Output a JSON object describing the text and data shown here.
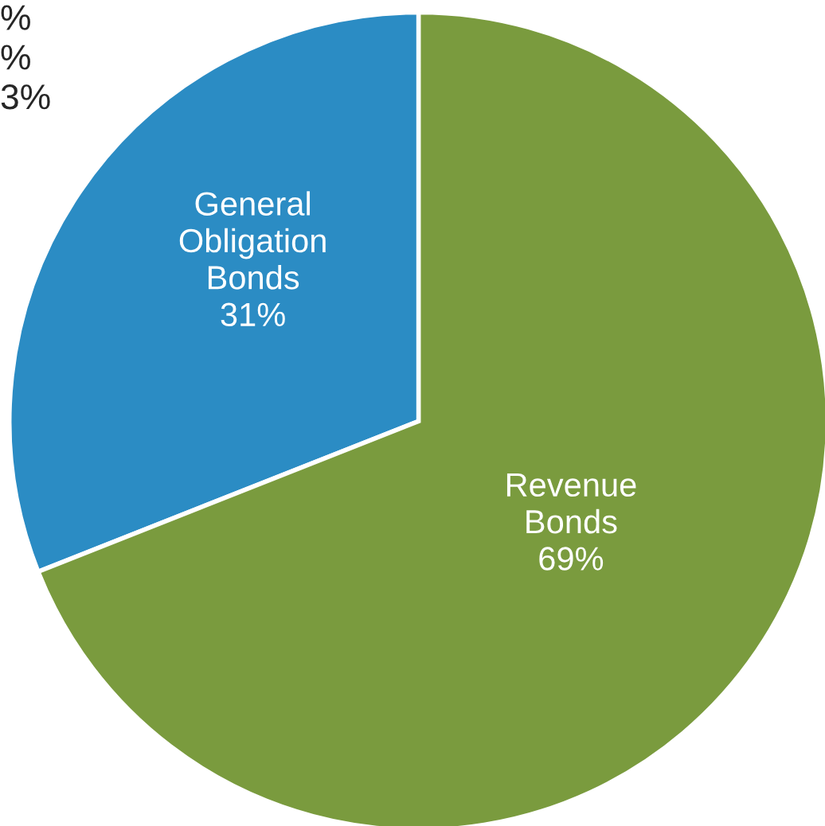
{
  "chart_data": {
    "type": "pie",
    "categories": [
      "General\nObligation\nBonds",
      "Revenue\nBonds"
    ],
    "values": [
      31,
      69
    ],
    "colors": [
      "#2b8cc4",
      "#7a9b3e"
    ],
    "value_labels": [
      "31%",
      "69%"
    ],
    "annotations": [
      "%",
      "%",
      "3%"
    ]
  }
}
